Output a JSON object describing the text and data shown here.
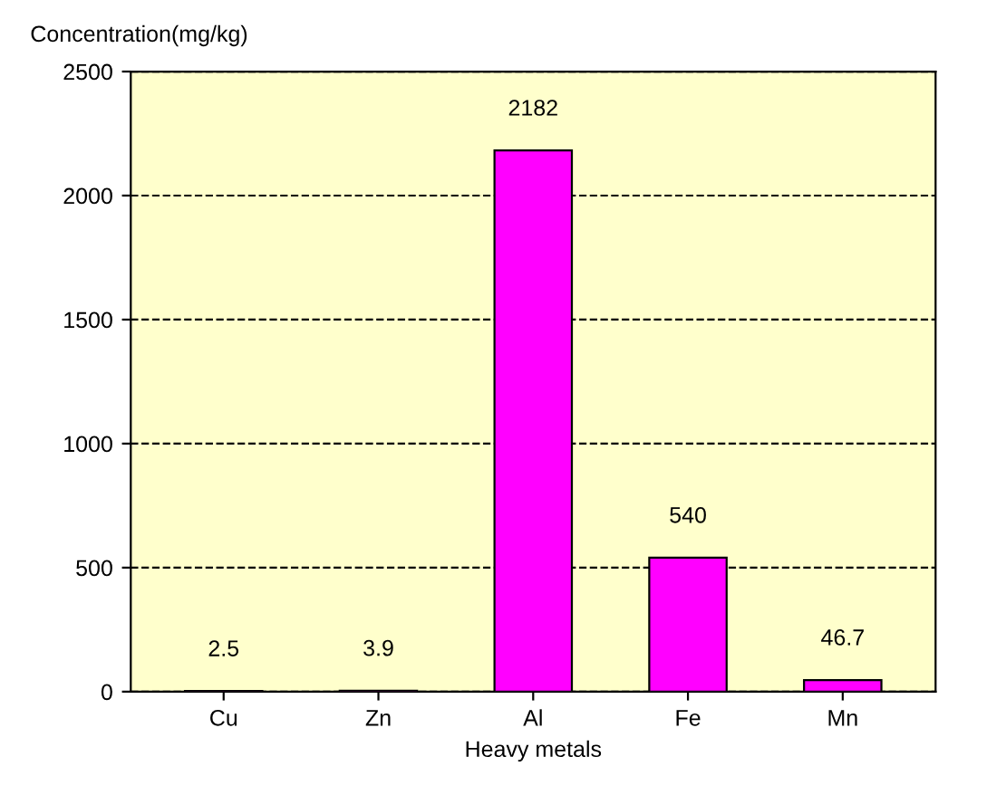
{
  "chart_data": {
    "type": "bar",
    "ylabel": "Concentration(mg/kg)",
    "xlabel": "Heavy metals",
    "categories": [
      "Cu",
      "Zn",
      "Al",
      "Fe",
      "Mn"
    ],
    "values": [
      2.5,
      3.9,
      2182,
      540,
      46.7
    ],
    "color": "#ff00ff",
    "ylim": [
      0,
      2500
    ],
    "yticks": [
      0,
      500,
      1000,
      1500,
      2000,
      2500
    ],
    "grid": "y",
    "data_labels": true
  }
}
